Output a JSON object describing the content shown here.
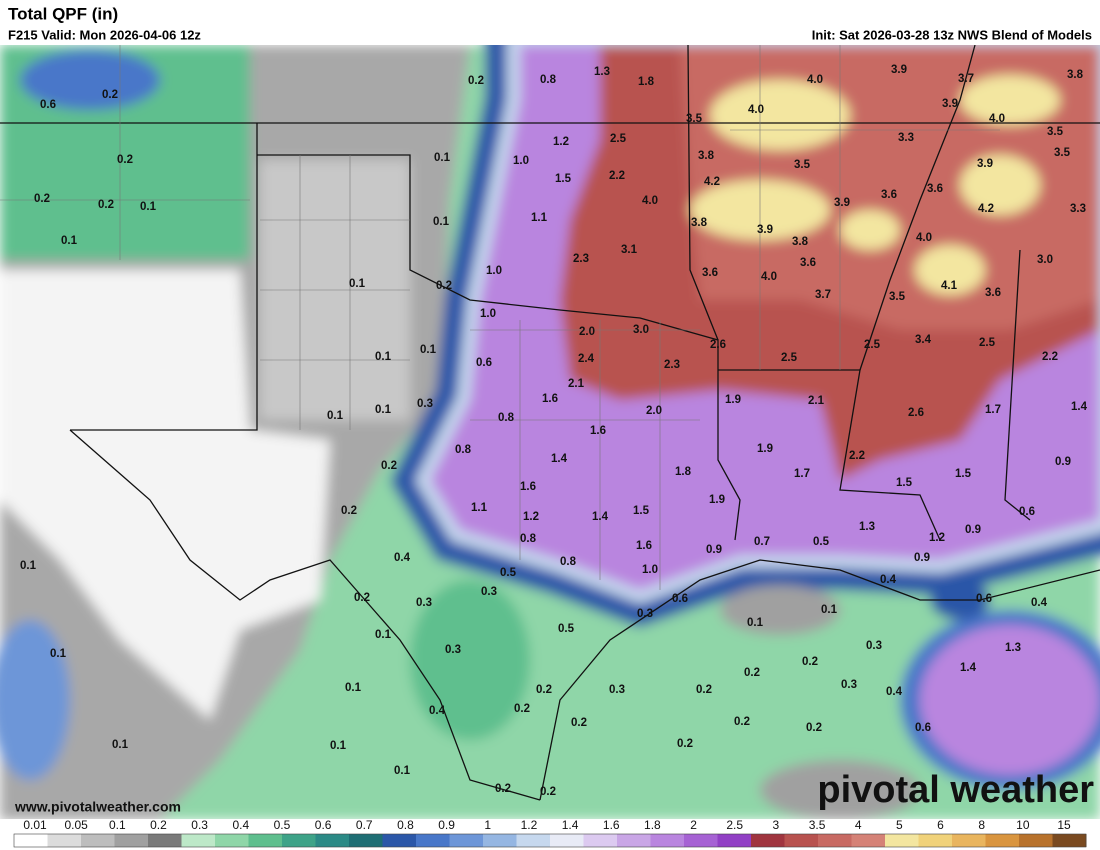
{
  "header": {
    "title": "Total QPF (in)",
    "valid": "F215 Valid: Mon 2026-04-06 12z",
    "init": "Init: Sat 2026-03-28 13z NWS Blend of Models"
  },
  "watermark": "www.pivotalweather.com",
  "logo": "pivotal weather",
  "labels": [
    "0.6",
    "0.2",
    "0.2",
    "0.2",
    "0.2",
    "0.1",
    "0.1",
    "0.2",
    "0.8",
    "1.3",
    "1.8",
    "4.0",
    "3.9",
    "3.7",
    "3.8",
    "3.9",
    "4.0",
    "4.0",
    "3.5",
    "3.3",
    "3.5",
    "3.5",
    "1.2",
    "2.5",
    "0.1",
    "1.0",
    "1.5",
    "2.2",
    "3.8",
    "4.2",
    "3.5",
    "3.9",
    "3.6",
    "3.6",
    "4.0",
    "3.9",
    "4.2",
    "3.3",
    "0.1",
    "1.1",
    "3.8",
    "3.9",
    "3.8",
    "4.0",
    "2.3",
    "3.1",
    "1.0",
    "3.6",
    "4.0",
    "3.6",
    "3.0",
    "0.1",
    "0.2",
    "4.1",
    "3.6",
    "3.7",
    "3.5",
    "1.0",
    "3.0",
    "2.0",
    "2.6",
    "3.4",
    "2.5",
    "2.5",
    "0.1",
    "0.1",
    "2.4",
    "2.5",
    "2.2",
    "0.6",
    "2.3",
    "2.1",
    "0.3",
    "0.1",
    "0.1",
    "1.6",
    "1.9",
    "2.1",
    "2.0",
    "2.6",
    "1.7",
    "1.4",
    "0.8",
    "1.6",
    "0.8",
    "1.9",
    "0.2",
    "1.4",
    "2.2",
    "0.9",
    "1.8",
    "1.7",
    "1.5",
    "1.6",
    "1.5",
    "1.9",
    "1.1",
    "1.5",
    "0.2",
    "1.2",
    "1.4",
    "0.6",
    "1.3",
    "0.9",
    "1.2",
    "0.8",
    "1.6",
    "0.9",
    "0.7",
    "0.5",
    "0.4",
    "0.8",
    "0.9",
    "0.1",
    "0.5",
    "1.0",
    "0.4",
    "0.3",
    "0.2",
    "0.3",
    "0.6",
    "0.6",
    "0.4",
    "0.3",
    "0.1",
    "0.1",
    "0.5",
    "0.1",
    "1.3",
    "0.1",
    "0.3",
    "0.3",
    "0.2",
    "0.2",
    "1.4",
    "0.3",
    "0.3",
    "0.2",
    "0.4",
    "0.1",
    "0.2",
    "0.4",
    "0.2",
    "0.2",
    "0.2",
    "0.2",
    "0.6",
    "0.1",
    "0.1",
    "0.2",
    "0.1",
    "0.2",
    "0.2"
  ],
  "legend": {
    "labels": [
      "0.01",
      "0.05",
      "0.1",
      "0.2",
      "0.3",
      "0.4",
      "0.5",
      "0.6",
      "0.7",
      "0.8",
      "0.9",
      "1",
      "1.2",
      "1.4",
      "1.6",
      "1.8",
      "2",
      "2.5",
      "3",
      "3.5",
      "4",
      "5",
      "6",
      "8",
      "10",
      "15"
    ],
    "colors": [
      "#ffffff",
      "#dcdcdc",
      "#bdbdbd",
      "#a0a0a0",
      "#7a7a7a",
      "#bde8c8",
      "#8fd6a8",
      "#5fbf8e",
      "#3ea388",
      "#2b8a86",
      "#1e6e74",
      "#2b57a8",
      "#4877c9",
      "#6d96d8",
      "#95b6e2",
      "#c6d8ee",
      "#e8ebf6",
      "#dccaf0",
      "#c9a6e6",
      "#b985df",
      "#a662d4",
      "#9140c5",
      "#a0353f",
      "#b8524f",
      "#c86a63",
      "#d58277",
      "#f3e6a0",
      "#f0d27a",
      "#e9b55e",
      "#d9953f",
      "#b8722c",
      "#7a4a20"
    ]
  }
}
